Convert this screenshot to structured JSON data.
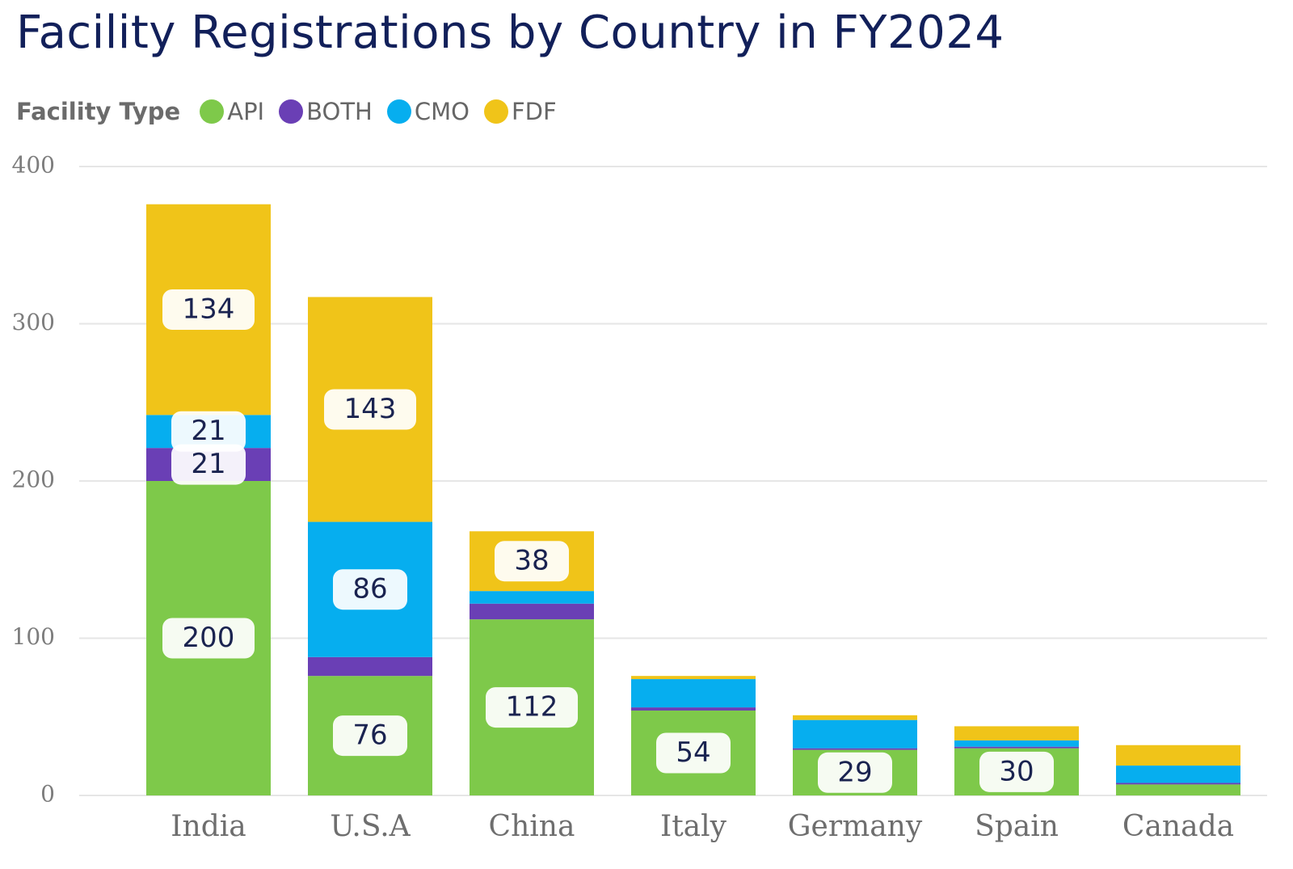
{
  "title": "Facility Registrations by Country in FY2024",
  "legend": {
    "title": "Facility Type",
    "items": [
      {
        "label": "API",
        "color": "#7ec94a"
      },
      {
        "label": "BOTH",
        "color": "#6a3fb5"
      },
      {
        "label": "CMO",
        "color": "#06aeef"
      },
      {
        "label": "FDF",
        "color": "#f0c419"
      }
    ]
  },
  "chart_data": {
    "type": "bar",
    "stacked": true,
    "title": "Facility Registrations by Country in FY2024",
    "categories": [
      "India",
      "U.S.A",
      "China",
      "Italy",
      "Germany",
      "Spain",
      "Canada"
    ],
    "series": [
      {
        "name": "API",
        "color": "#7ec94a",
        "values": [
          200,
          76,
          112,
          54,
          29,
          30,
          7
        ]
      },
      {
        "name": "BOTH",
        "color": "#6a3fb5",
        "values": [
          21,
          12,
          10,
          2,
          1,
          1,
          1
        ]
      },
      {
        "name": "CMO",
        "color": "#06aeef",
        "values": [
          21,
          86,
          8,
          18,
          18,
          4,
          11
        ]
      },
      {
        "name": "FDF",
        "color": "#f0c419",
        "values": [
          134,
          143,
          38,
          2,
          3,
          9,
          13
        ]
      }
    ],
    "data_labels": [
      {
        "category": "India",
        "series": "API",
        "text": "200"
      },
      {
        "category": "India",
        "series": "BOTH",
        "text": "21"
      },
      {
        "category": "India",
        "series": "CMO",
        "text": "21"
      },
      {
        "category": "India",
        "series": "FDF",
        "text": "134"
      },
      {
        "category": "U.S.A",
        "series": "API",
        "text": "76"
      },
      {
        "category": "U.S.A",
        "series": "CMO",
        "text": "86"
      },
      {
        "category": "U.S.A",
        "series": "FDF",
        "text": "143"
      },
      {
        "category": "China",
        "series": "API",
        "text": "112"
      },
      {
        "category": "China",
        "series": "FDF",
        "text": "38"
      },
      {
        "category": "Italy",
        "series": "API",
        "text": "54"
      },
      {
        "category": "Germany",
        "series": "API",
        "text": "29"
      },
      {
        "category": "Spain",
        "series": "API",
        "text": "30"
      }
    ],
    "ylim": [
      0,
      400
    ],
    "yticks": [
      0,
      100,
      200,
      300,
      400
    ],
    "grid": true,
    "legend_position": "top-left"
  }
}
